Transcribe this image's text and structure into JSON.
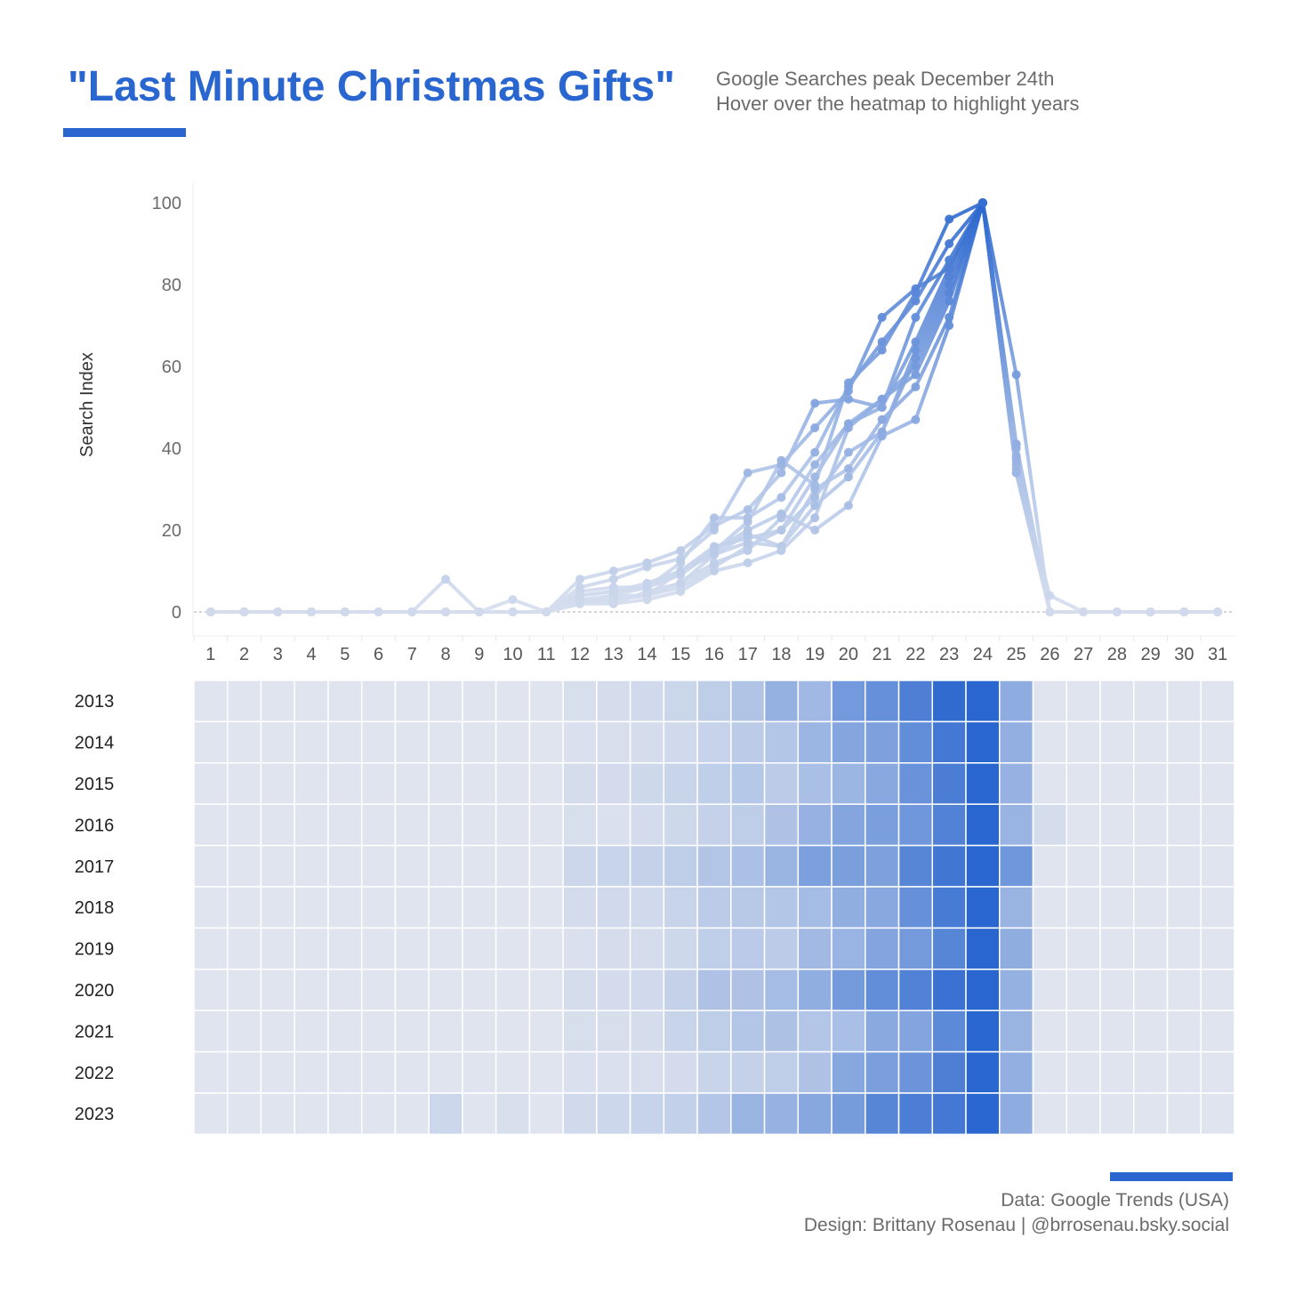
{
  "header": {
    "title": "\"Last Minute Christmas Gifts\"",
    "subtitle_line1": "Google Searches peak December 24th",
    "subtitle_line2": "Hover over the heatmap to highlight years"
  },
  "footer": {
    "source": "Data: Google Trends (USA)",
    "credit": "Design: Brittany Rosenau | @brrosenau.bsky.social"
  },
  "colors": {
    "accent": "#2a66cf",
    "low": "#dfe4ee",
    "high": "#2a66cf",
    "text_gray": "#6b6b6b"
  },
  "chart_data": [
    {
      "type": "line",
      "ylabel": "Search Index",
      "xlabel": "",
      "ylim": [
        0,
        100
      ],
      "yticks": [
        0,
        20,
        40,
        60,
        80,
        100
      ],
      "x": [
        1,
        2,
        3,
        4,
        5,
        6,
        7,
        8,
        9,
        10,
        11,
        12,
        13,
        14,
        15,
        16,
        17,
        18,
        19,
        20,
        21,
        22,
        23,
        24,
        25,
        26,
        27,
        28,
        29,
        30,
        31
      ],
      "series": [
        {
          "name": "2013",
          "values": [
            0,
            0,
            0,
            0,
            0,
            0,
            0,
            0,
            0,
            0,
            0,
            3,
            4,
            6,
            9,
            15,
            22,
            37,
            31,
            56,
            64,
            78,
            96,
            100,
            41,
            0,
            0,
            0,
            0,
            0,
            0
          ]
        },
        {
          "name": "2014",
          "values": [
            0,
            0,
            0,
            0,
            0,
            0,
            0,
            0,
            0,
            0,
            0,
            2,
            3,
            4,
            6,
            11,
            16,
            20,
            33,
            46,
            50,
            66,
            84,
            100,
            38,
            0,
            0,
            0,
            0,
            0,
            0
          ]
        },
        {
          "name": "2015",
          "values": [
            0,
            0,
            0,
            0,
            0,
            0,
            0,
            0,
            0,
            0,
            0,
            4,
            5,
            7,
            10,
            14,
            19,
            16,
            26,
            33,
            44,
            62,
            80,
            100,
            36,
            0,
            0,
            0,
            0,
            0,
            0
          ]
        },
        {
          "name": "2016",
          "values": [
            0,
            0,
            0,
            0,
            0,
            0,
            0,
            0,
            0,
            0,
            0,
            3,
            2,
            5,
            7,
            12,
            15,
            23,
            36,
            46,
            52,
            58,
            76,
            100,
            35,
            4,
            0,
            0,
            0,
            0,
            0
          ]
        },
        {
          "name": "2017",
          "values": [
            0,
            0,
            0,
            0,
            0,
            0,
            0,
            0,
            0,
            0,
            0,
            8,
            10,
            12,
            15,
            21,
            25,
            34,
            51,
            52,
            50,
            72,
            86,
            100,
            58,
            0,
            0,
            0,
            0,
            0,
            0
          ]
        },
        {
          "name": "2018",
          "values": [
            0,
            0,
            0,
            0,
            0,
            0,
            0,
            0,
            0,
            0,
            0,
            5,
            6,
            6,
            10,
            16,
            18,
            20,
            28,
            39,
            44,
            64,
            82,
            100,
            34,
            0,
            0,
            0,
            0,
            0,
            0
          ]
        },
        {
          "name": "2019",
          "values": [
            0,
            0,
            0,
            0,
            0,
            0,
            0,
            0,
            0,
            0,
            0,
            2,
            4,
            4,
            7,
            14,
            17,
            16,
            30,
            35,
            47,
            55,
            72,
            100,
            40,
            0,
            0,
            0,
            0,
            0,
            0
          ]
        },
        {
          "name": "2020",
          "values": [
            0,
            0,
            0,
            0,
            0,
            0,
            0,
            0,
            0,
            0,
            0,
            4,
            5,
            6,
            12,
            23,
            23,
            28,
            39,
            55,
            66,
            76,
            90,
            100,
            37,
            0,
            0,
            0,
            0,
            0,
            0
          ]
        },
        {
          "name": "2021",
          "values": [
            0,
            0,
            0,
            0,
            0,
            0,
            0,
            0,
            0,
            0,
            0,
            3,
            3,
            4,
            10,
            15,
            20,
            24,
            20,
            26,
            43,
            47,
            70,
            100,
            34,
            0,
            0,
            0,
            0,
            0,
            0
          ]
        },
        {
          "name": "2022",
          "values": [
            0,
            0,
            0,
            0,
            0,
            0,
            0,
            0,
            0,
            0,
            0,
            2,
            2,
            3,
            5,
            10,
            12,
            15,
            23,
            45,
            52,
            60,
            78,
            100,
            38,
            0,
            0,
            0,
            0,
            0,
            0
          ]
        },
        {
          "name": "2023",
          "values": [
            0,
            0,
            0,
            0,
            0,
            0,
            0,
            8,
            0,
            3,
            0,
            6,
            8,
            11,
            13,
            20,
            34,
            36,
            45,
            54,
            72,
            79,
            84,
            100,
            41,
            0,
            0,
            0,
            0,
            0,
            0
          ]
        }
      ]
    },
    {
      "type": "heatmap",
      "x": [
        1,
        2,
        3,
        4,
        5,
        6,
        7,
        8,
        9,
        10,
        11,
        12,
        13,
        14,
        15,
        16,
        17,
        18,
        19,
        20,
        21,
        22,
        23,
        24,
        25,
        26,
        27,
        28,
        29,
        30,
        31
      ],
      "rows": [
        "2013",
        "2014",
        "2015",
        "2016",
        "2017",
        "2018",
        "2019",
        "2020",
        "2021",
        "2022",
        "2023"
      ],
      "value_source": "line series values by year and day",
      "color_scale": [
        "#dfe4ee",
        "#2a66cf"
      ]
    }
  ]
}
